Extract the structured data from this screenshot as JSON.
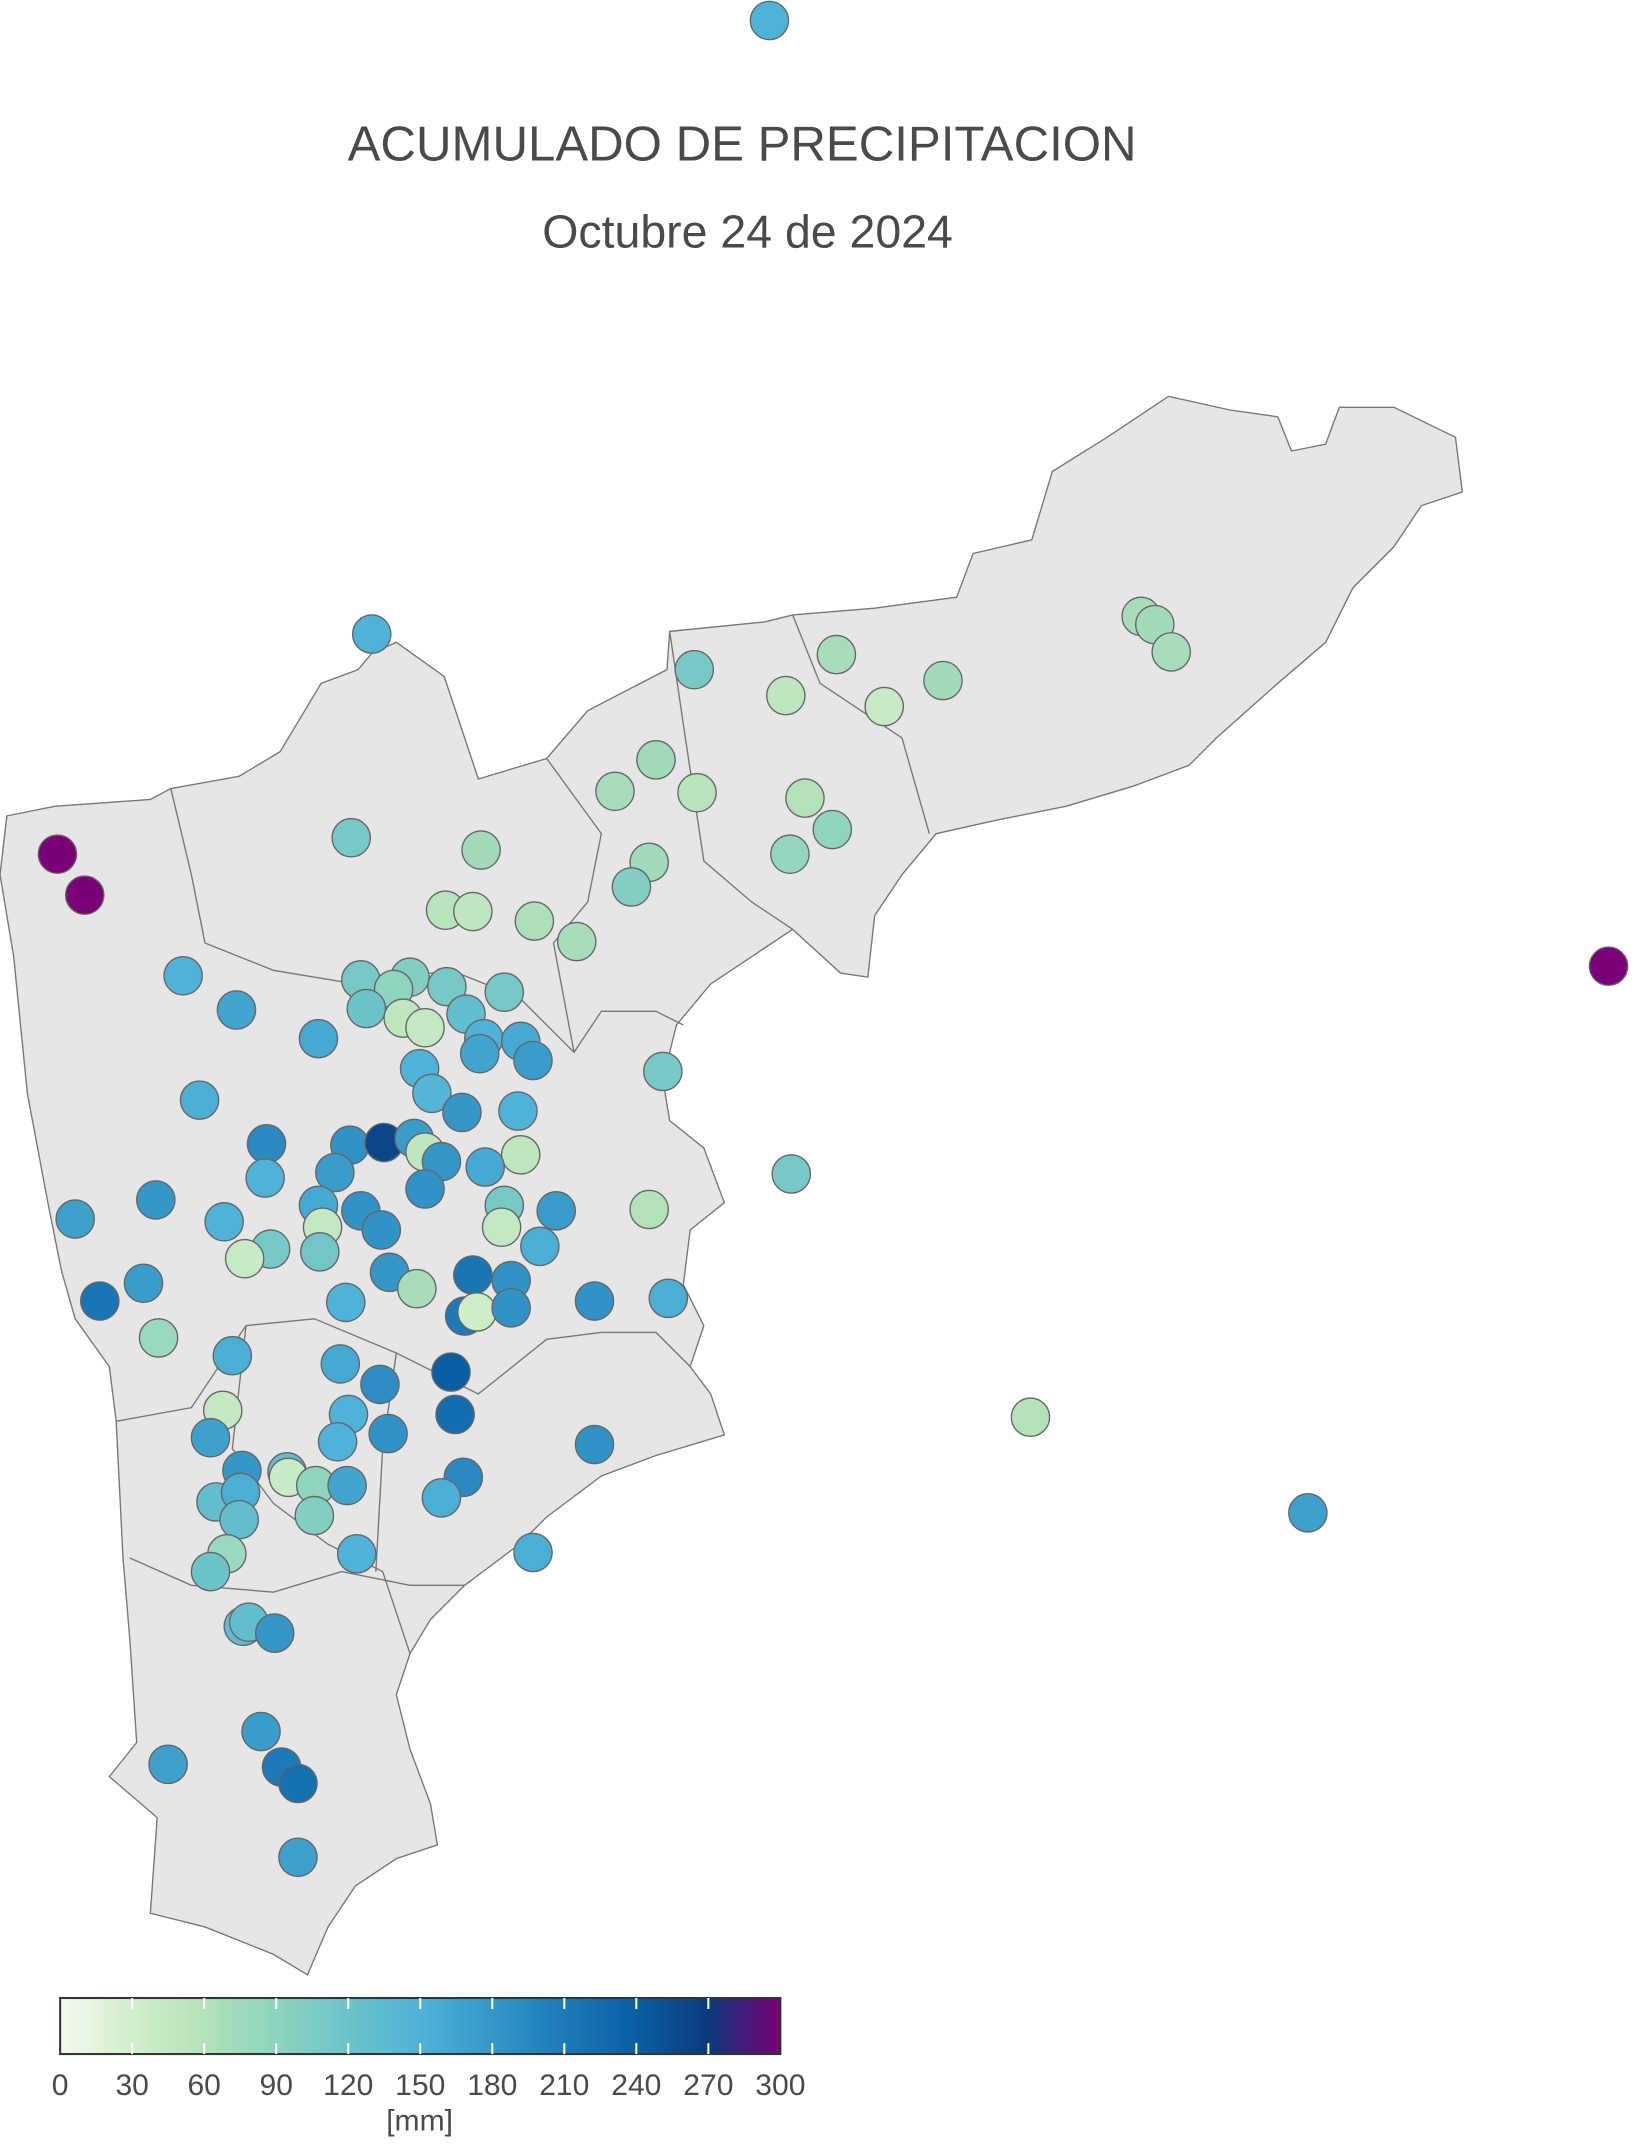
{
  "title": "ACUMULADO DE PRECIPITACION",
  "subtitle": "Octubre 24 de 2024",
  "colorbar": {
    "label": "[mm]",
    "ticks": [
      0,
      30,
      60,
      90,
      120,
      150,
      180,
      210,
      240,
      270,
      300
    ],
    "colors": [
      "#f2faed",
      "#d3eecd",
      "#b3e2b8",
      "#8ed4bf",
      "#6cc3ca",
      "#4fb2d8",
      "#3597c8",
      "#1c7ab8",
      "#0a5ea2",
      "#0b3a7c",
      "#7a0177"
    ]
  },
  "stations": {
    "values": [
      150,
      300,
      300,
      300,
      150,
      110,
      50,
      70,
      40,
      75,
      70,
      75,
      70,
      75,
      70,
      55,
      60,
      90,
      85,
      75,
      100,
      110,
      75,
      55,
      50,
      65,
      70,
      150,
      165,
      160,
      110,
      100,
      90,
      110,
      120,
      50,
      45,
      130,
      110,
      150,
      160,
      175,
      165,
      150,
      145,
      180,
      150,
      110,
      155,
      195,
      185,
      260,
      175,
      50,
      50,
      180,
      160,
      175,
      150,
      110,
      180,
      170,
      150,
      160,
      185,
      185,
      45,
      110,
      40,
      115,
      185,
      110,
      175,
      45,
      60,
      155,
      180,
      215,
      185,
      70,
      215,
      175,
      185,
      155,
      150,
      210,
      35,
      185,
      80,
      155,
      160,
      240,
      190,
      225,
      150,
      45,
      170,
      185,
      150,
      185,
      60,
      180,
      130,
      40,
      90,
      165,
      195,
      130,
      155,
      155,
      130,
      100,
      170,
      155,
      150,
      80,
      120,
      135,
      130,
      180,
      175,
      170,
      210,
      220,
      170
    ]
  }
}
